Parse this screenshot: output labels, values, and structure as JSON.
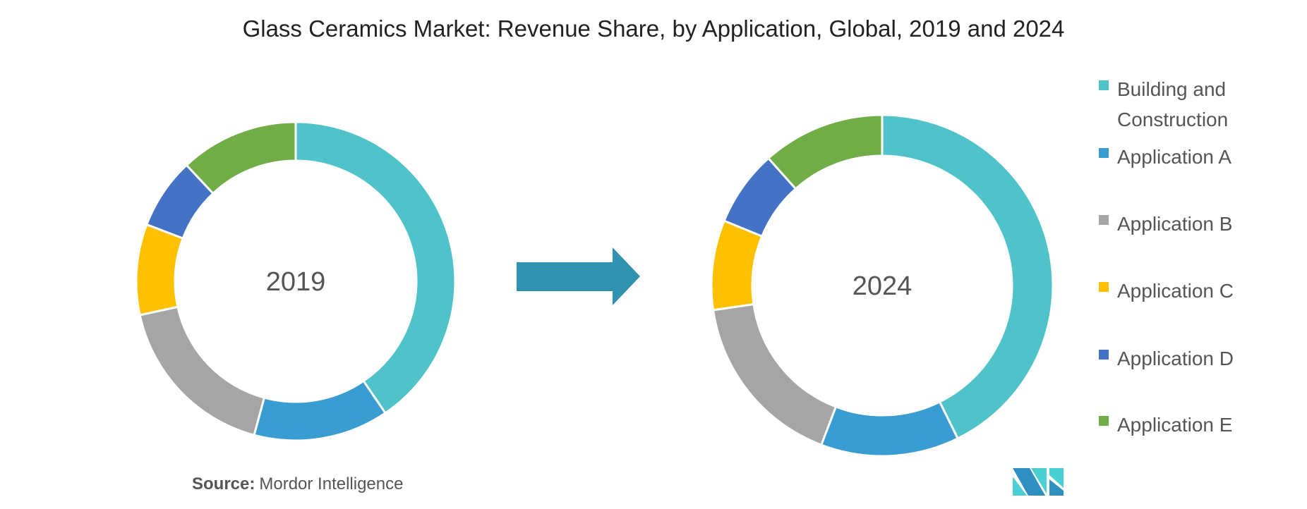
{
  "chart_data": [
    {
      "type": "donut",
      "title": "Glass Ceramics Market: Revenue Share, by Application, Global, 2019 and 2024",
      "center_label": "2019",
      "categories": [
        "Building and Construction",
        "Application A",
        "Application B",
        "Application C",
        "Application D",
        "Application E"
      ],
      "values": [
        40.5,
        13.7,
        17.4,
        9.2,
        7.2,
        12.0
      ],
      "unit": "%"
    },
    {
      "type": "donut",
      "center_label": "2024",
      "categories": [
        "Building and Construction",
        "Application A",
        "Application B",
        "Application C",
        "Application D",
        "Application E"
      ],
      "values": [
        42.7,
        13.1,
        16.9,
        8.5,
        7.2,
        11.6
      ],
      "unit": "%"
    }
  ],
  "title": "Glass Ceramics Market: Revenue Share, by Application, Global, 2019 and 2024",
  "legend": {
    "placement": "right",
    "items": [
      {
        "label_lines": [
          "Building and",
          "Construction"
        ],
        "color": "#4fc3c9"
      },
      {
        "label_lines": [
          "Application A"
        ],
        "color": "#3a9dd1"
      },
      {
        "label_lines": [
          "Application B"
        ],
        "color": "#a5a5a5"
      },
      {
        "label_lines": [
          "Application C"
        ],
        "color": "#ffc000"
      },
      {
        "label_lines": [
          "Application D"
        ],
        "color": "#4472c4"
      },
      {
        "label_lines": [
          "Application E"
        ],
        "color": "#70ad47"
      }
    ]
  },
  "arrow_color": "#2e92b0",
  "source": {
    "label": "Source:",
    "text": "Mordor Intelligence"
  },
  "logo": {
    "text": "Mordor Intelligence",
    "colors": [
      "#2e8fc0",
      "#4acfd3"
    ]
  }
}
